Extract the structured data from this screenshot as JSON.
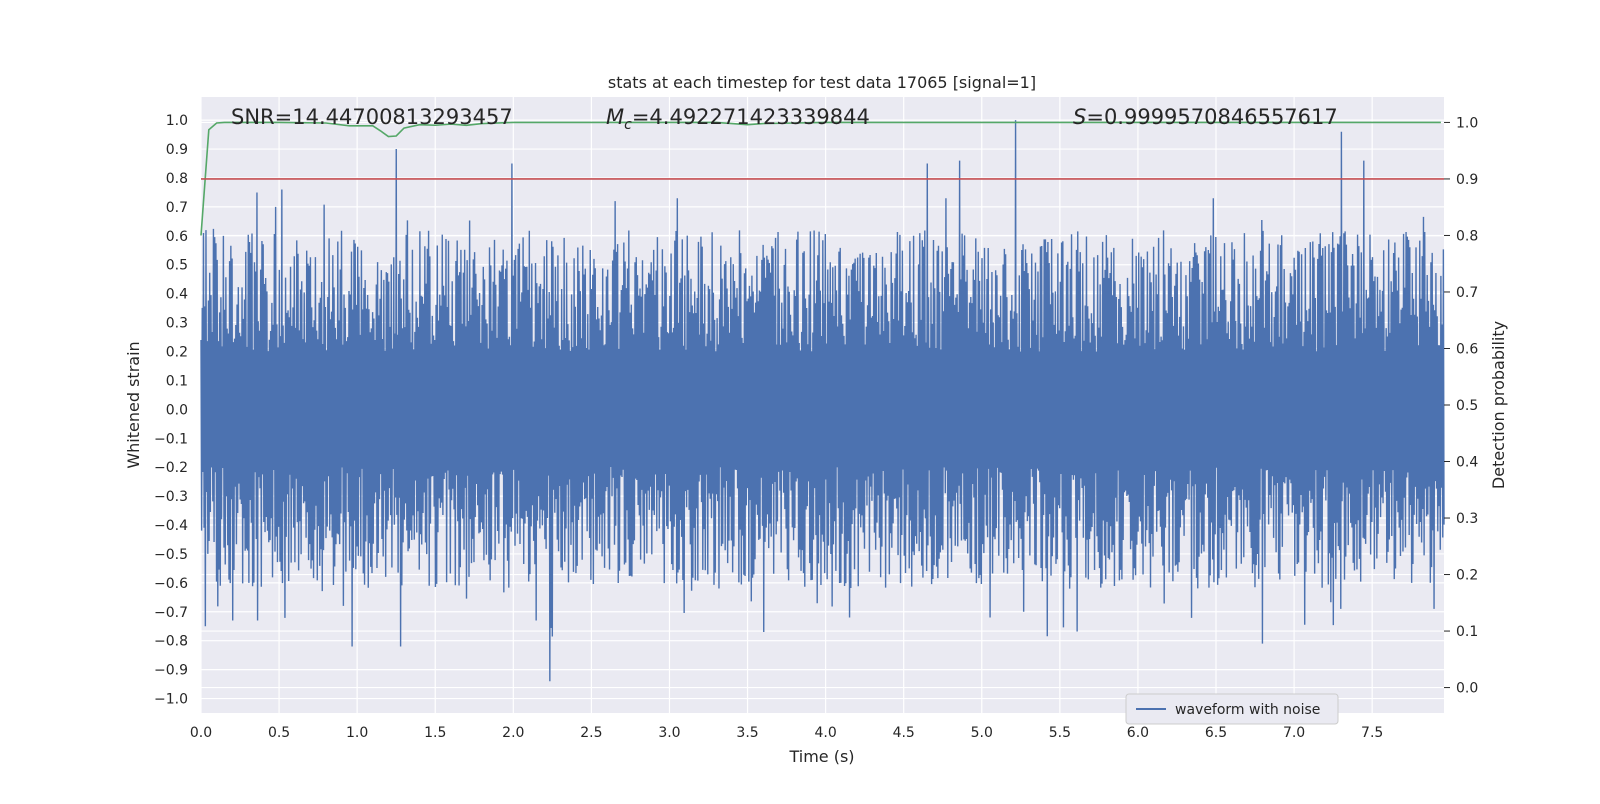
{
  "chart_data": {
    "type": "line",
    "title": "stats at each timestep for test data 17065 [signal=1]",
    "xlabel": "Time (s)",
    "ylabel": "Whitened strain",
    "y2label": "Detection probability",
    "xlim": [
      0.0,
      7.96
    ],
    "ylim": [
      -1.05,
      1.08
    ],
    "y2lim": [
      -0.045,
      1.045
    ],
    "xticks": [
      "0.0",
      "0.5",
      "1.0",
      "1.5",
      "2.0",
      "2.5",
      "3.0",
      "3.5",
      "4.0",
      "4.5",
      "5.0",
      "5.5",
      "6.0",
      "6.5",
      "7.0",
      "7.5"
    ],
    "xtick_values": [
      0.0,
      0.5,
      1.0,
      1.5,
      2.0,
      2.5,
      3.0,
      3.5,
      4.0,
      4.5,
      5.0,
      5.5,
      6.0,
      6.5,
      7.0,
      7.5
    ],
    "yticks": [
      "1.0",
      "0.9",
      "0.8",
      "0.7",
      "0.6",
      "0.5",
      "0.4",
      "0.3",
      "0.2",
      "0.1",
      "0.0",
      "−0.1",
      "−0.2",
      "−0.3",
      "−0.4",
      "−0.5",
      "−0.6",
      "−0.7",
      "−0.8",
      "−0.9",
      "−1.0"
    ],
    "ytick_values": [
      1.0,
      0.9,
      0.8,
      0.7,
      0.6,
      0.5,
      0.4,
      0.3,
      0.2,
      0.1,
      0.0,
      -0.1,
      -0.2,
      -0.3,
      -0.4,
      -0.5,
      -0.6,
      -0.7,
      -0.8,
      -0.9,
      -1.0
    ],
    "y2ticks": [
      "1.0",
      "0.9",
      "0.8",
      "0.7",
      "0.6",
      "0.5",
      "0.4",
      "0.3",
      "0.2",
      "0.1",
      "0.0"
    ],
    "y2tick_values": [
      1.0,
      0.9,
      0.8,
      0.7,
      0.6,
      0.5,
      0.4,
      0.3,
      0.2,
      0.1,
      0.0
    ],
    "annotations": {
      "snr": "SNR=14.44700813293457",
      "mc_symbol": "M",
      "mc_sub": "c",
      "mc_value": "=4.492271423339844",
      "s_symbol": "S",
      "s_value": "=0.9999570846557617"
    },
    "legend": {
      "label": "waveform with noise",
      "loc": "lower right"
    },
    "series": [
      {
        "name": "waveform with noise",
        "color": "#4c72b0",
        "axis": "left",
        "kind": "noise-strain",
        "n_samples": 2000,
        "envelope_typical": 0.42,
        "peaks": [
          {
            "t": 0.03,
            "v": -0.75
          },
          {
            "t": 0.12,
            "v": -0.61
          },
          {
            "t": 0.14,
            "v": 0.6
          },
          {
            "t": 0.2,
            "v": -0.73
          },
          {
            "t": 0.36,
            "v": 0.75
          },
          {
            "t": 0.36,
            "v": -0.73
          },
          {
            "t": 0.48,
            "v": 0.7
          },
          {
            "t": 0.52,
            "v": 0.76
          },
          {
            "t": 0.97,
            "v": -0.82
          },
          {
            "t": 1.25,
            "v": 0.9
          },
          {
            "t": 1.28,
            "v": -0.82
          },
          {
            "t": 1.99,
            "v": 0.85
          },
          {
            "t": 2.23,
            "v": -0.94
          },
          {
            "t": 2.15,
            "v": -0.73
          },
          {
            "t": 2.65,
            "v": 0.72
          },
          {
            "t": 3.6,
            "v": -0.77
          },
          {
            "t": 4.15,
            "v": -0.72
          },
          {
            "t": 4.65,
            "v": 0.85
          },
          {
            "t": 4.86,
            "v": 0.86
          },
          {
            "t": 5.22,
            "v": 1.0
          },
          {
            "t": 5.05,
            "v": -0.72
          },
          {
            "t": 6.8,
            "v": -0.81
          },
          {
            "t": 7.3,
            "v": 0.96
          },
          {
            "t": 7.45,
            "v": 0.86
          },
          {
            "t": 7.3,
            "v": -0.69
          },
          {
            "t": 7.9,
            "v": -0.69
          },
          {
            "t": 5.27,
            "v": -0.7
          },
          {
            "t": 3.05,
            "v": 0.73
          }
        ]
      },
      {
        "name": "detection probability",
        "color": "#55a868",
        "axis": "right",
        "x": [
          0.0,
          0.05,
          0.1,
          0.15,
          0.3,
          0.5,
          0.8,
          0.95,
          1.1,
          1.15,
          1.2,
          1.25,
          1.3,
          1.4,
          1.5,
          1.6,
          1.7,
          1.8,
          2.0,
          2.5,
          3.0,
          3.3,
          3.5,
          3.6,
          3.8,
          4.0,
          4.5,
          5.0,
          6.0,
          7.0,
          7.94
        ],
        "values": [
          0.8,
          0.987,
          0.999,
          1.0,
          1.0,
          1.0,
          0.999,
          0.994,
          0.994,
          0.985,
          0.975,
          0.976,
          0.99,
          0.996,
          0.995,
          0.997,
          0.995,
          0.998,
          1.0,
          1.0,
          1.0,
          1.0,
          0.996,
          0.998,
          0.999,
          1.0,
          1.0,
          1.0,
          1.0,
          1.0,
          1.0
        ]
      },
      {
        "name": "threshold",
        "color": "#c44e52",
        "axis": "right",
        "x": [
          0.0,
          7.96
        ],
        "values": [
          0.9,
          0.9
        ]
      }
    ]
  }
}
